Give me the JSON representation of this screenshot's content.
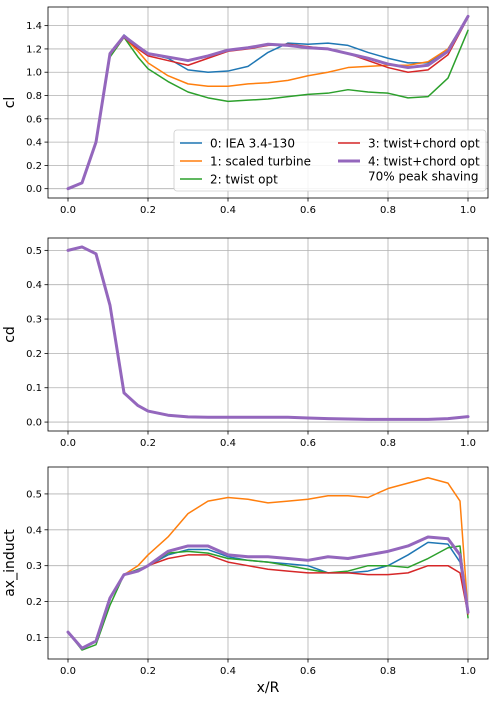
{
  "chart_data": [
    {
      "type": "line",
      "ylabel": "cl",
      "xlabel": "",
      "xlim": [
        -0.05,
        1.05
      ],
      "ylim": [
        -0.08,
        1.56
      ],
      "xticks": [
        "0.0",
        "0.2",
        "0.4",
        "0.6",
        "0.8",
        "1.0"
      ],
      "yticks": [
        "0.0",
        "0.2",
        "0.4",
        "0.6",
        "0.8",
        "1.0",
        "1.2",
        "1.4"
      ],
      "grid": true,
      "legend": {
        "position": "lower-right",
        "entries": [
          [
            "0: IEA 3.4-130"
          ],
          [
            "1: scaled turbine"
          ],
          [
            "2: twist opt"
          ],
          [
            "3: twist+chord opt"
          ],
          [
            "4: twist+chord opt",
            "70% peak shaving"
          ]
        ]
      },
      "x": [
        0.0,
        0.035,
        0.07,
        0.105,
        0.14,
        0.175,
        0.2,
        0.25,
        0.3,
        0.35,
        0.4,
        0.45,
        0.5,
        0.55,
        0.6,
        0.65,
        0.7,
        0.75,
        0.8,
        0.85,
        0.9,
        0.95,
        1.0
      ],
      "series": [
        {
          "name": "0: IEA 3.4-130",
          "color": "#1f77b4",
          "width": 1.5,
          "values": [
            0.0,
            0.05,
            0.4,
            1.15,
            1.32,
            1.22,
            1.16,
            1.12,
            1.02,
            1.0,
            1.01,
            1.05,
            1.17,
            1.25,
            1.24,
            1.25,
            1.23,
            1.17,
            1.12,
            1.08,
            1.08,
            1.2,
            1.48
          ]
        },
        {
          "name": "1: scaled turbine",
          "color": "#ff7f0e",
          "width": 1.5,
          "values": [
            0.0,
            0.05,
            0.4,
            1.15,
            1.3,
            1.18,
            1.08,
            0.97,
            0.9,
            0.88,
            0.88,
            0.9,
            0.91,
            0.93,
            0.97,
            1.0,
            1.04,
            1.05,
            1.06,
            1.06,
            1.09,
            1.2,
            1.47
          ]
        },
        {
          "name": "2: twist opt",
          "color": "#2ca02c",
          "width": 1.5,
          "values": [
            0.0,
            0.05,
            0.4,
            1.13,
            1.3,
            1.13,
            1.03,
            0.92,
            0.83,
            0.78,
            0.75,
            0.76,
            0.77,
            0.79,
            0.81,
            0.82,
            0.85,
            0.83,
            0.82,
            0.78,
            0.79,
            0.95,
            1.36
          ]
        },
        {
          "name": "3: twist+chord opt",
          "color": "#d62728",
          "width": 1.5,
          "values": [
            0.0,
            0.05,
            0.4,
            1.15,
            1.3,
            1.2,
            1.14,
            1.1,
            1.06,
            1.12,
            1.18,
            1.2,
            1.23,
            1.24,
            1.22,
            1.2,
            1.16,
            1.1,
            1.04,
            1.0,
            1.02,
            1.15,
            1.47
          ]
        },
        {
          "name": "4: twist+chord opt 70% peak shaving",
          "color": "#9467bd",
          "width": 3,
          "values": [
            0.0,
            0.05,
            0.4,
            1.16,
            1.31,
            1.22,
            1.16,
            1.13,
            1.1,
            1.14,
            1.19,
            1.21,
            1.24,
            1.23,
            1.21,
            1.2,
            1.16,
            1.12,
            1.07,
            1.04,
            1.06,
            1.18,
            1.48
          ]
        }
      ]
    },
    {
      "type": "line",
      "ylabel": "cd",
      "xlabel": "",
      "xlim": [
        -0.05,
        1.05
      ],
      "ylim": [
        -0.026,
        0.536
      ],
      "xticks": [
        "0.0",
        "0.2",
        "0.4",
        "0.6",
        "0.8",
        "1.0"
      ],
      "yticks": [
        "0.0",
        "0.1",
        "0.2",
        "0.3",
        "0.4",
        "0.5"
      ],
      "grid": true,
      "x": [
        0.0,
        0.035,
        0.07,
        0.105,
        0.14,
        0.175,
        0.2,
        0.25,
        0.3,
        0.35,
        0.4,
        0.45,
        0.5,
        0.55,
        0.6,
        0.65,
        0.7,
        0.75,
        0.8,
        0.85,
        0.9,
        0.95,
        1.0
      ],
      "series": [
        {
          "name": "0: IEA 3.4-130",
          "color": "#1f77b4",
          "width": 1.5,
          "values": [
            0.5,
            0.51,
            0.49,
            0.34,
            0.085,
            0.048,
            0.032,
            0.02,
            0.015,
            0.014,
            0.014,
            0.014,
            0.014,
            0.014,
            0.012,
            0.01,
            0.009,
            0.008,
            0.008,
            0.008,
            0.008,
            0.01,
            0.015
          ]
        },
        {
          "name": "1: scaled turbine",
          "color": "#ff7f0e",
          "width": 1.5,
          "values": [
            0.5,
            0.51,
            0.49,
            0.34,
            0.085,
            0.048,
            0.032,
            0.02,
            0.015,
            0.014,
            0.014,
            0.014,
            0.014,
            0.014,
            0.012,
            0.01,
            0.009,
            0.008,
            0.008,
            0.008,
            0.008,
            0.01,
            0.015
          ]
        },
        {
          "name": "2: twist opt",
          "color": "#2ca02c",
          "width": 1.5,
          "values": [
            0.5,
            0.51,
            0.49,
            0.34,
            0.085,
            0.048,
            0.032,
            0.02,
            0.015,
            0.014,
            0.014,
            0.014,
            0.014,
            0.014,
            0.012,
            0.01,
            0.009,
            0.008,
            0.008,
            0.008,
            0.008,
            0.01,
            0.015
          ]
        },
        {
          "name": "3: twist+chord opt",
          "color": "#d62728",
          "width": 1.5,
          "values": [
            0.5,
            0.51,
            0.49,
            0.34,
            0.085,
            0.048,
            0.032,
            0.02,
            0.015,
            0.014,
            0.014,
            0.014,
            0.014,
            0.014,
            0.012,
            0.01,
            0.009,
            0.008,
            0.008,
            0.008,
            0.008,
            0.01,
            0.015
          ]
        },
        {
          "name": "4: twist+chord opt 70% peak shaving",
          "color": "#9467bd",
          "width": 3,
          "values": [
            0.5,
            0.51,
            0.49,
            0.34,
            0.085,
            0.048,
            0.032,
            0.02,
            0.015,
            0.014,
            0.014,
            0.014,
            0.014,
            0.014,
            0.012,
            0.01,
            0.009,
            0.008,
            0.008,
            0.008,
            0.008,
            0.01,
            0.016
          ]
        }
      ]
    },
    {
      "type": "line",
      "ylabel": "ax_induct",
      "xlabel": "x/R",
      "xlim": [
        -0.05,
        1.05
      ],
      "ylim": [
        0.04,
        0.575
      ],
      "xticks": [
        "0.0",
        "0.2",
        "0.4",
        "0.6",
        "0.8",
        "1.0"
      ],
      "yticks": [
        "0.1",
        "0.2",
        "0.3",
        "0.4",
        "0.5"
      ],
      "grid": true,
      "x": [
        0.0,
        0.035,
        0.07,
        0.105,
        0.14,
        0.175,
        0.2,
        0.25,
        0.3,
        0.35,
        0.4,
        0.45,
        0.5,
        0.55,
        0.6,
        0.65,
        0.7,
        0.75,
        0.8,
        0.85,
        0.9,
        0.95,
        0.98,
        1.0
      ],
      "series": [
        {
          "name": "0: IEA 3.4-130",
          "color": "#1f77b4",
          "width": 1.5,
          "values": [
            0.115,
            0.07,
            0.09,
            0.21,
            0.275,
            0.285,
            0.3,
            0.33,
            0.345,
            0.345,
            0.325,
            0.315,
            0.31,
            0.305,
            0.3,
            0.28,
            0.28,
            0.285,
            0.3,
            0.33,
            0.365,
            0.36,
            0.31,
            0.17
          ]
        },
        {
          "name": "1: scaled turbine",
          "color": "#ff7f0e",
          "width": 1.5,
          "values": [
            0.115,
            0.07,
            0.09,
            0.21,
            0.275,
            0.3,
            0.33,
            0.38,
            0.445,
            0.48,
            0.49,
            0.485,
            0.475,
            0.48,
            0.485,
            0.495,
            0.495,
            0.49,
            0.515,
            0.53,
            0.545,
            0.53,
            0.48,
            0.17
          ]
        },
        {
          "name": "2: twist opt",
          "color": "#2ca02c",
          "width": 1.5,
          "values": [
            0.115,
            0.065,
            0.08,
            0.19,
            0.275,
            0.29,
            0.3,
            0.335,
            0.34,
            0.335,
            0.32,
            0.315,
            0.31,
            0.3,
            0.29,
            0.28,
            0.285,
            0.3,
            0.3,
            0.295,
            0.32,
            0.35,
            0.355,
            0.155
          ]
        },
        {
          "name": "3: twist+chord opt",
          "color": "#d62728",
          "width": 1.5,
          "values": [
            0.115,
            0.07,
            0.09,
            0.21,
            0.275,
            0.285,
            0.3,
            0.32,
            0.33,
            0.33,
            0.31,
            0.3,
            0.29,
            0.285,
            0.28,
            0.28,
            0.28,
            0.275,
            0.275,
            0.28,
            0.3,
            0.3,
            0.28,
            0.165
          ]
        },
        {
          "name": "4: twist+chord opt 70% peak shaving",
          "color": "#9467bd",
          "width": 3,
          "values": [
            0.115,
            0.07,
            0.09,
            0.21,
            0.275,
            0.285,
            0.3,
            0.34,
            0.355,
            0.355,
            0.33,
            0.325,
            0.325,
            0.32,
            0.315,
            0.325,
            0.32,
            0.33,
            0.34,
            0.355,
            0.38,
            0.375,
            0.33,
            0.17
          ]
        }
      ]
    }
  ]
}
